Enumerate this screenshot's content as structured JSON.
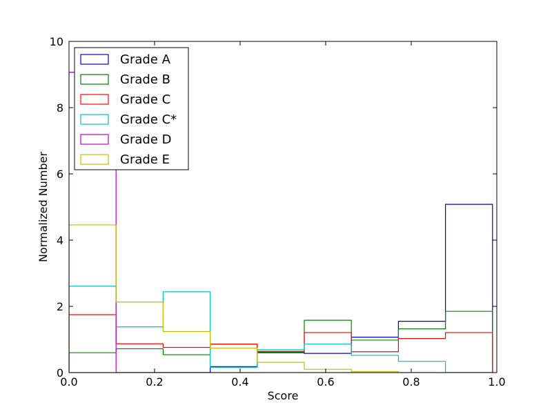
{
  "chart_data": {
    "type": "histogram-step",
    "title": "",
    "xlabel": "Score",
    "ylabel": "Normalized Number",
    "xlim": [
      0.0,
      1.0
    ],
    "ylim": [
      0,
      10
    ],
    "xticks": [
      "0.0",
      "0.2",
      "0.4",
      "0.6",
      "0.8",
      "1.0"
    ],
    "yticks": [
      "0",
      "2",
      "4",
      "6",
      "8",
      "10"
    ],
    "legend_position": "top-left",
    "bin_edges": [
      0.0,
      0.11,
      0.22,
      0.33,
      0.44,
      0.55,
      0.66,
      0.77,
      0.88,
      0.99
    ],
    "series": [
      {
        "name": "Grade A",
        "color": "#0000cc",
        "values": [
          0.0,
          0.0,
          0.0,
          0.18,
          0.6,
          0.58,
          1.07,
          1.55,
          5.08
        ]
      },
      {
        "name": "Grade B",
        "color": "#008000",
        "values": [
          0.6,
          0.72,
          0.54,
          0.86,
          0.62,
          1.58,
          0.98,
          1.32,
          1.85
        ]
      },
      {
        "name": "Grade C",
        "color": "#ff0000",
        "values": [
          1.75,
          0.87,
          0.76,
          0.86,
          0.64,
          1.21,
          0.63,
          1.03,
          1.21
        ]
      },
      {
        "name": "Grade C*",
        "color": "#00bfbf",
        "values": [
          2.61,
          1.38,
          2.44,
          0.16,
          0.69,
          0.86,
          0.52,
          0.34,
          0.0
        ]
      },
      {
        "name": "Grade D",
        "color": "#bf00bf",
        "values": [
          9.07,
          0.0,
          0.0,
          0.0,
          0.0,
          0.0,
          0.0,
          0.0,
          0.0
        ]
      },
      {
        "name": "Grade E",
        "color": "#bfbf00",
        "values": [
          4.46,
          2.13,
          1.24,
          0.74,
          0.31,
          0.1,
          0.03,
          0.0,
          0.0
        ]
      }
    ]
  }
}
